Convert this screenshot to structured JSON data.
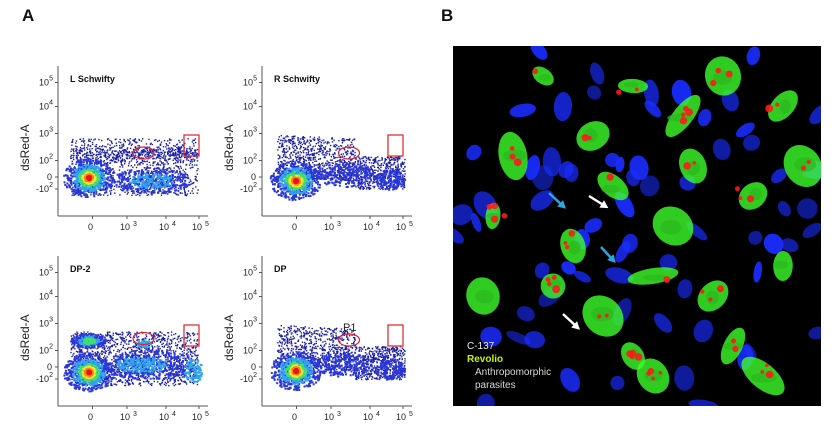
{
  "figure": {
    "panel_a_label": "A",
    "panel_b_label": "B"
  },
  "plots": [
    {
      "title": "L Schwifty",
      "ylabel": "dsRed-A",
      "gate_label": ""
    },
    {
      "title": "R Schwifty",
      "ylabel": "dsRed-A",
      "gate_label": ""
    },
    {
      "title": "DP-2",
      "ylabel": "dsRed-A",
      "gate_label": ""
    },
    {
      "title": "DP",
      "ylabel": "dsRed-A",
      "gate_label": "P1"
    }
  ],
  "axis": {
    "y_ticks": [
      "10",
      "10",
      "10",
      "10",
      "0",
      "-10"
    ],
    "y_exps": [
      "5",
      "4",
      "3",
      "2",
      "",
      "2"
    ],
    "x_ticks": [
      "0",
      "10",
      "10",
      "10"
    ],
    "x_exps": [
      "",
      "3",
      "4",
      "5"
    ]
  },
  "microscopy": {
    "legend": {
      "c137": "C-137",
      "revolio": "Revolio",
      "parasites": "Anthropomorphic parasites"
    },
    "colors": {
      "nuclei": "#1a2cff",
      "revolio": "#3dff2a",
      "parasites": "#ff1a1a",
      "arrow_white": "#ffffff",
      "arrow_cyan": "#2aa8e0"
    }
  },
  "chart_data": [
    {
      "type": "scatter",
      "title": "L Schwifty",
      "ylabel": "dsRed-A",
      "x_scale": "biexponential",
      "y_scale": "biexponential",
      "gates": [
        "ellipse",
        "rectangle"
      ]
    },
    {
      "type": "scatter",
      "title": "R Schwifty",
      "ylabel": "dsRed-A",
      "x_scale": "biexponential",
      "y_scale": "biexponential",
      "gates": [
        "ellipse",
        "rectangle"
      ]
    },
    {
      "type": "scatter",
      "title": "DP-2",
      "ylabel": "dsRed-A",
      "x_scale": "biexponential",
      "y_scale": "biexponential",
      "gates": [
        "ellipse",
        "rectangle"
      ]
    },
    {
      "type": "scatter",
      "title": "DP",
      "ylabel": "dsRed-A",
      "x_scale": "biexponential",
      "y_scale": "biexponential",
      "gates": [
        "ellipse",
        "rectangle"
      ],
      "gate_label": "P1"
    }
  ]
}
